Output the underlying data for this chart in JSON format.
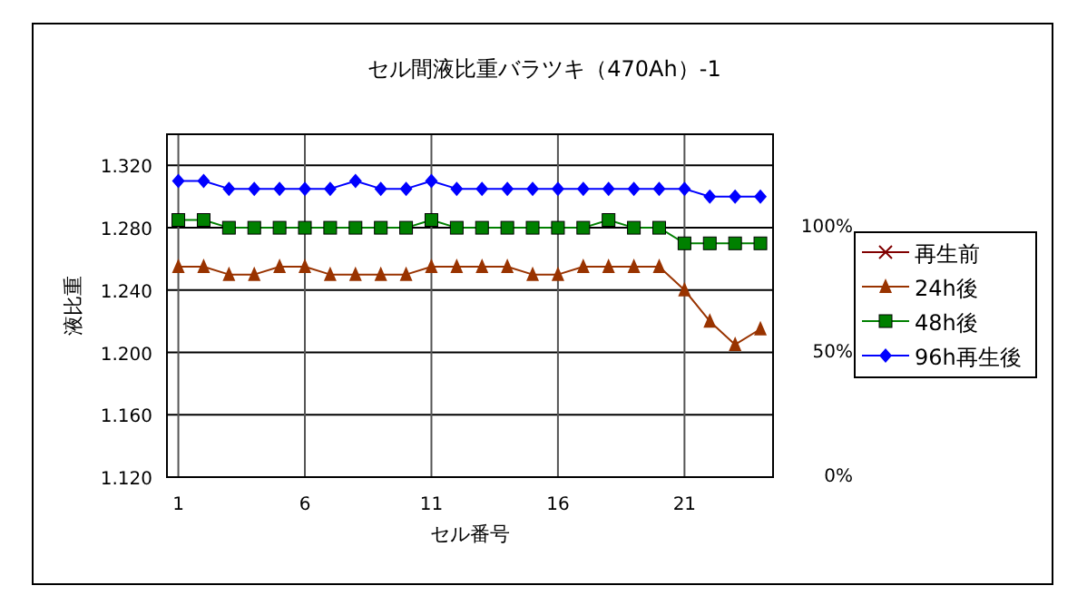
{
  "chart_data": {
    "type": "line",
    "title": "セル間液比重バラツキ（470Ah）-1",
    "xlabel": "セル番号",
    "ylabel": "液比重",
    "x": [
      1,
      2,
      3,
      4,
      5,
      6,
      7,
      8,
      9,
      10,
      11,
      12,
      13,
      14,
      15,
      16,
      17,
      18,
      19,
      20,
      21,
      22,
      23,
      24
    ],
    "xlim": [
      0.55,
      24.5
    ],
    "xticks": [
      1,
      6,
      11,
      16,
      21
    ],
    "ylim": [
      1.12,
      1.34
    ],
    "yticks": [
      {
        "value": 1.12,
        "label": "1.120"
      },
      {
        "value": 1.16,
        "label": "1.160"
      },
      {
        "value": 1.2,
        "label": "1.200"
      },
      {
        "value": 1.24,
        "label": "1.240"
      },
      {
        "value": 1.28,
        "label": "1.280"
      },
      {
        "value": 1.32,
        "label": "1.320"
      }
    ],
    "y2lim": [
      0,
      137.5
    ],
    "y2ticks": [
      {
        "value": 0,
        "label": "0%"
      },
      {
        "value": 50,
        "label": "50%"
      },
      {
        "value": 100,
        "label": "100%"
      }
    ],
    "grid": true,
    "legend": "right",
    "series": [
      {
        "name": "再生前",
        "color": "#800000",
        "marker": "cross",
        "values": [
          null,
          null,
          null,
          null,
          null,
          null,
          null,
          null,
          null,
          null,
          null,
          null,
          null,
          null,
          null,
          null,
          null,
          null,
          null,
          null,
          null,
          null,
          null,
          null
        ]
      },
      {
        "name": "24h後",
        "color": "#993300",
        "marker": "triangle",
        "values": [
          1.255,
          1.255,
          1.25,
          1.25,
          1.255,
          1.255,
          1.25,
          1.25,
          1.25,
          1.25,
          1.255,
          1.255,
          1.255,
          1.255,
          1.25,
          1.25,
          1.255,
          1.255,
          1.255,
          1.255,
          1.24,
          1.22,
          1.205,
          1.215
        ]
      },
      {
        "name": "48h後",
        "color": "#008000",
        "marker": "square",
        "values": [
          1.285,
          1.285,
          1.28,
          1.28,
          1.28,
          1.28,
          1.28,
          1.28,
          1.28,
          1.28,
          1.285,
          1.28,
          1.28,
          1.28,
          1.28,
          1.28,
          1.28,
          1.285,
          1.28,
          1.28,
          1.27,
          1.27,
          1.27,
          1.27
        ]
      },
      {
        "name": "96h再生後",
        "color": "#0000ff",
        "marker": "diamond",
        "values": [
          1.31,
          1.31,
          1.305,
          1.305,
          1.305,
          1.305,
          1.305,
          1.31,
          1.305,
          1.305,
          1.31,
          1.305,
          1.305,
          1.305,
          1.305,
          1.305,
          1.305,
          1.305,
          1.305,
          1.305,
          1.305,
          1.3,
          1.3,
          1.3
        ]
      }
    ]
  }
}
